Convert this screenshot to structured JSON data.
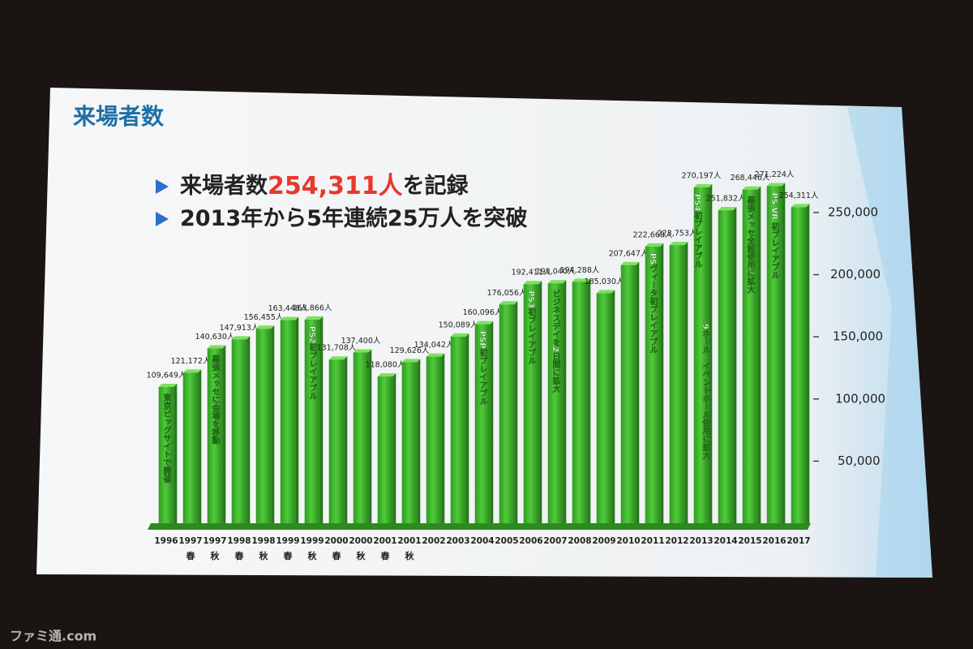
{
  "chart_data": {
    "type": "bar",
    "title": "来場者数",
    "bullets": [
      {
        "parts": [
          "来場者数",
          "254,311人",
          "を記録"
        ]
      },
      {
        "parts": [
          "2013年から5年連続25万人を突破"
        ]
      }
    ],
    "categories": [
      "1996",
      "1997",
      "1997",
      "1998",
      "1998",
      "1999",
      "1999",
      "2000",
      "2000",
      "2001",
      "2001",
      "2002",
      "2003",
      "2004",
      "2005",
      "2006",
      "2007",
      "2008",
      "2009",
      "2010",
      "2011",
      "2012",
      "2013",
      "2014",
      "2015",
      "2016",
      "2017"
    ],
    "category_sublabels": [
      null,
      "春",
      "秋",
      "春",
      "秋",
      "春",
      "秋",
      "春",
      "秋",
      "春",
      "秋",
      null,
      null,
      null,
      null,
      null,
      null,
      null,
      null,
      null,
      null,
      null,
      null,
      null,
      null,
      null,
      null
    ],
    "values": [
      109649,
      121172,
      140630,
      147913,
      156455,
      163448,
      163866,
      131708,
      137400,
      118080,
      129626,
      134042,
      150089,
      160096,
      176056,
      192411,
      193040,
      194288,
      185030,
      207647,
      222668,
      223753,
      270197,
      251832,
      268446,
      271224,
      254311
    ],
    "value_labels": [
      "109,649人",
      "121,172人",
      "140,630人",
      "147,913人",
      "156,455人",
      "163,448人",
      "163,866人",
      "131,708人",
      "137,400人",
      "118,080人",
      "129,626人",
      "134,042人",
      "150,089人",
      "160,096人",
      "176,056人",
      "192,411人",
      "193,040人",
      "194,288人",
      "185,030人",
      "207,647人",
      "222,668人",
      "223,753人",
      "270,197人",
      "251,832人",
      "268,446人",
      "271,224人",
      "254,311人"
    ],
    "color": "#3dbb2a",
    "ylim": [
      0,
      280000
    ],
    "yticks": [
      {
        "value": 50000,
        "label": "50,000"
      },
      {
        "value": 100000,
        "label": "100,000"
      },
      {
        "value": 150000,
        "label": "150,000"
      },
      {
        "value": 200000,
        "label": "200,000"
      },
      {
        "value": 250000,
        "label": "250,000"
      }
    ],
    "annotations": [
      {
        "index": 0,
        "text": "東京ビッグサイトで開催"
      },
      {
        "index": 2,
        "text": "幕張メッセに会場を移動"
      },
      {
        "index": 6,
        "text": "PS2初プレイアブル"
      },
      {
        "index": 13,
        "text": "PSP初プレイアブル"
      },
      {
        "index": 15,
        "text": "PS3初プレイアブル"
      },
      {
        "index": 16,
        "text": "ビジネスデイを2日間に拡大"
      },
      {
        "index": 20,
        "text": "PSヴィータ初プレイアブル"
      },
      {
        "index": 22,
        "text": "PS4初プレイアブル"
      },
      {
        "index": 22,
        "text": "9ホール・イベントホール使用に拡大"
      },
      {
        "index": 24,
        "text": "幕張メッセ全館使用に拡大"
      },
      {
        "index": 25,
        "text": "PS VR 初プレイアブル"
      }
    ],
    "watermark": "ファミ通.com"
  }
}
